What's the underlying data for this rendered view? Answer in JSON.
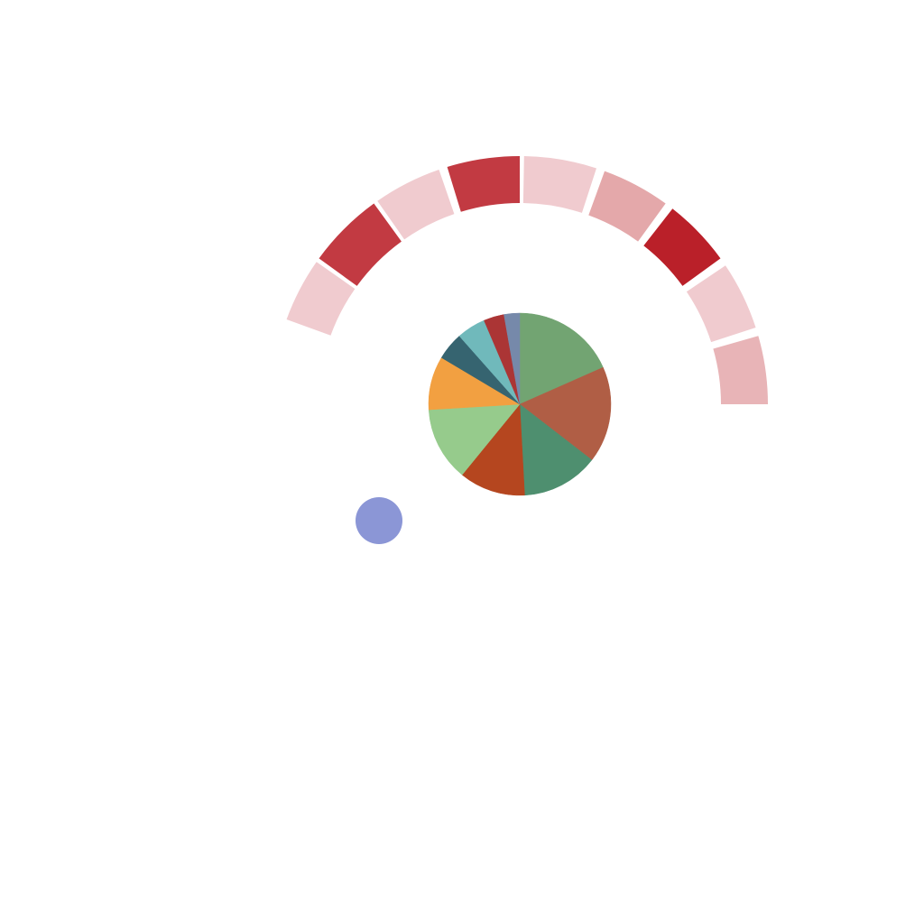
{
  "chart_data": [
    {
      "type": "pie",
      "start_angle_deg": 0,
      "direction": "clockwise",
      "slices": [
        {
          "value": 17.2,
          "color": "#72a472"
        },
        {
          "value": 16.0,
          "color": "#b05e45"
        },
        {
          "value": 12.8,
          "color": "#4e8f6f"
        },
        {
          "value": 11.0,
          "color": "#b5461f"
        },
        {
          "value": 12.3,
          "color": "#96cb8c"
        },
        {
          "value": 8.9,
          "color": "#f2a041"
        },
        {
          "value": 4.6,
          "color": "#366470"
        },
        {
          "value": 4.8,
          "color": "#70b9bb"
        },
        {
          "value": 3.4,
          "color": "#ab3535"
        },
        {
          "value": 2.6,
          "color": "#7689aa"
        }
      ]
    },
    {
      "type": "radial-bar",
      "segments": [
        {
          "start_deg": -70,
          "end_deg": -55,
          "color": "#f0cbcf"
        },
        {
          "start_deg": -54,
          "end_deg": -36,
          "color": "#c23a42"
        },
        {
          "start_deg": -35,
          "end_deg": -19,
          "color": "#f0cbcf"
        },
        {
          "start_deg": -17,
          "end_deg": 0,
          "color": "#c23a42"
        },
        {
          "start_deg": 1,
          "end_deg": 18,
          "color": "#f0cbcf"
        },
        {
          "start_deg": 20,
          "end_deg": 36,
          "color": "#e4a8aa"
        },
        {
          "start_deg": 38,
          "end_deg": 54,
          "color": "#ba2029"
        },
        {
          "start_deg": 56,
          "end_deg": 72,
          "color": "#f0cbcf"
        },
        {
          "start_deg": 74,
          "end_deg": 90,
          "color": "#e8b4b7"
        }
      ]
    },
    {
      "type": "scatter",
      "points": [
        {
          "color": "#8b96d6"
        }
      ]
    }
  ]
}
